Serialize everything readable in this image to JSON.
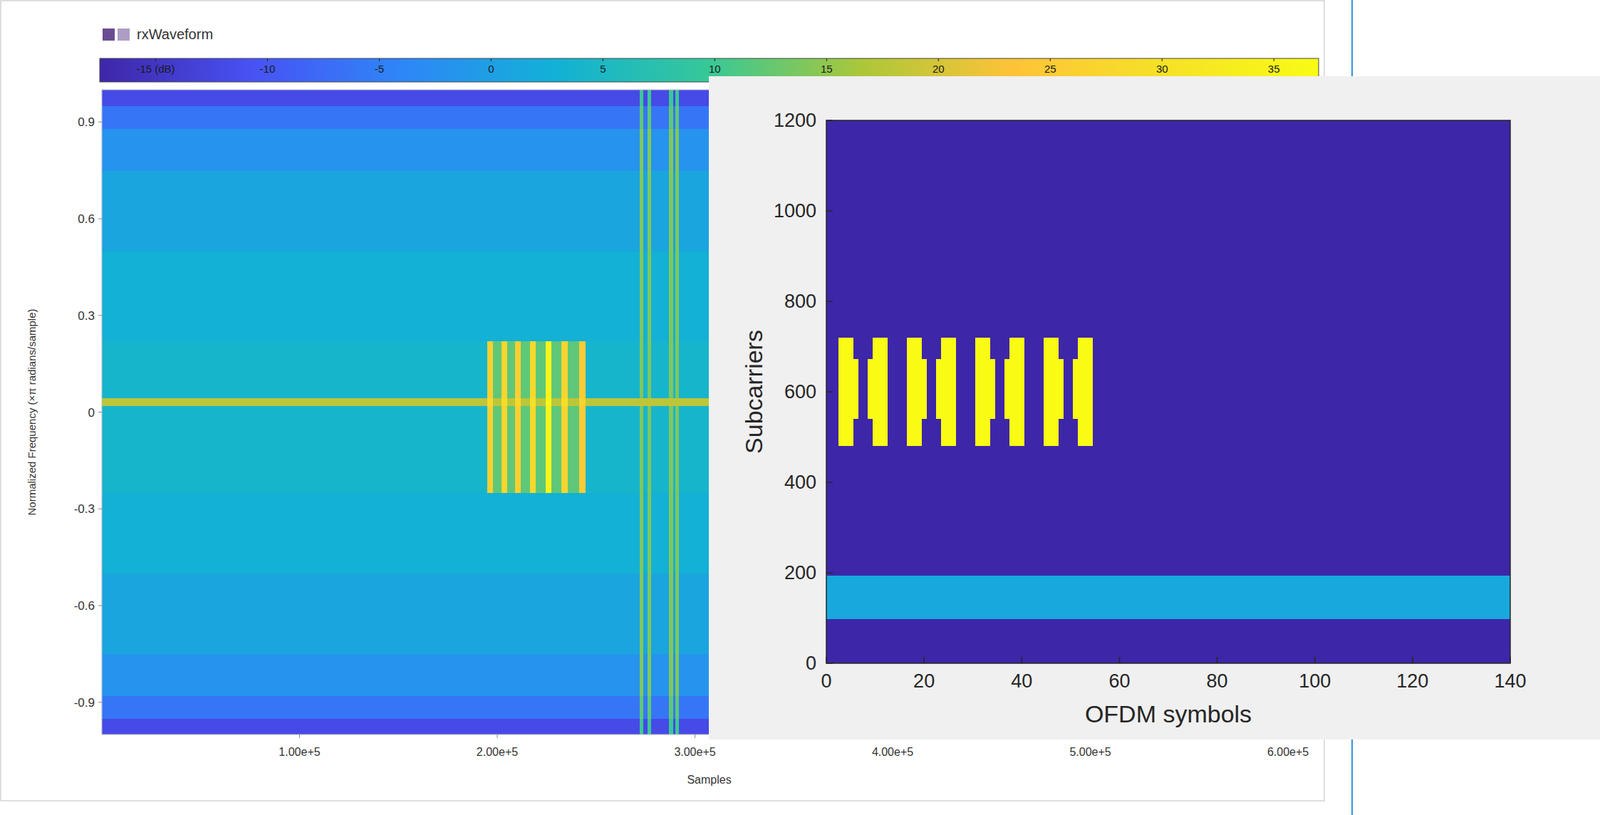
{
  "chart_data": [
    {
      "type": "heatmap",
      "series": [
        {
          "name": "rxWaveform",
          "color": "#6a4c93"
        }
      ],
      "legend": "top-left",
      "x_label": "Samples",
      "y_label": "Normalized Frequency (×π radians/sample)",
      "xlim": [
        0,
        614400
      ],
      "ylim": [
        -1,
        1
      ],
      "xticks": [
        {
          "value": 100000,
          "label": "1.00e+5"
        },
        {
          "value": 200000,
          "label": "2.00e+5"
        },
        {
          "value": 300000,
          "label": "3.00e+5"
        },
        {
          "value": 400000,
          "label": "4.00e+5"
        },
        {
          "value": 500000,
          "label": "5.00e+5"
        },
        {
          "value": 600000,
          "label": "6.00e+5"
        }
      ],
      "yticks": [
        0.9,
        0.6,
        0.3,
        0,
        -0.3,
        -0.6,
        -0.9
      ],
      "x_edges": [
        0,
        195000,
        198000,
        202000,
        205000,
        209000,
        212000,
        216500,
        219500,
        224500,
        227500,
        232500,
        235500,
        241500,
        244500,
        272000,
        274000,
        276000,
        278000,
        287000,
        289000,
        290000,
        292000,
        614400
      ],
      "y_edges": [
        -1,
        -0.95,
        -0.88,
        -0.75,
        -0.5,
        -0.25,
        0.02,
        0.045,
        0.22,
        0.5,
        0.75,
        0.88,
        0.95,
        1
      ],
      "cells": [
        [
          -12,
          -12,
          -12,
          -12,
          -12,
          -12,
          -12,
          -12,
          -12,
          -12,
          -12,
          -12,
          -12,
          -12,
          -12,
          10,
          -12,
          10,
          -12,
          10,
          -12,
          10,
          -12
        ],
        [
          -6,
          -6,
          -6,
          -6,
          -6,
          -6,
          -6,
          -6,
          -6,
          -6,
          -6,
          -6,
          -6,
          -6,
          -6,
          12,
          -6,
          12,
          -6,
          12,
          -6,
          12,
          -6
        ],
        [
          -2,
          -2,
          -2,
          -2,
          -2,
          -2,
          -2,
          -2,
          -2,
          -2,
          -2,
          -2,
          -2,
          -2,
          -2,
          14,
          -2,
          14,
          -2,
          14,
          -2,
          14,
          -2
        ],
        [
          1,
          1,
          1,
          1,
          1,
          1,
          1,
          1,
          1,
          1,
          1,
          1,
          1,
          1,
          1,
          14,
          1,
          14,
          1,
          14,
          1,
          14,
          1
        ],
        [
          3,
          3,
          3,
          3,
          3,
          3,
          3,
          3,
          3,
          3,
          3,
          3,
          3,
          3,
          3,
          14,
          3,
          14,
          3,
          14,
          3,
          14,
          3
        ],
        [
          4,
          26,
          12,
          27,
          12,
          26,
          12,
          28,
          12,
          35,
          12,
          27,
          12,
          25,
          4,
          14,
          4,
          14,
          4,
          14,
          4,
          14,
          4
        ],
        [
          18,
          28,
          18,
          29,
          18,
          28,
          18,
          30,
          18,
          36,
          18,
          29,
          18,
          27,
          18,
          18,
          18,
          18,
          18,
          18,
          18,
          18,
          18
        ],
        [
          4,
          26,
          12,
          27,
          12,
          26,
          12,
          28,
          12,
          35,
          12,
          27,
          12,
          25,
          4,
          14,
          4,
          14,
          4,
          14,
          4,
          14,
          4
        ],
        [
          3,
          3,
          3,
          3,
          3,
          3,
          3,
          3,
          3,
          3,
          3,
          3,
          3,
          3,
          3,
          14,
          3,
          14,
          3,
          14,
          3,
          14,
          3
        ],
        [
          1,
          1,
          1,
          1,
          1,
          1,
          1,
          1,
          1,
          1,
          1,
          1,
          1,
          1,
          1,
          14,
          1,
          14,
          1,
          14,
          1,
          14,
          1
        ],
        [
          -2,
          -2,
          -2,
          -2,
          -2,
          -2,
          -2,
          -2,
          -2,
          -2,
          -2,
          -2,
          -2,
          -2,
          -2,
          14,
          -2,
          14,
          -2,
          14,
          -2,
          14,
          -2
        ],
        [
          -6,
          -6,
          -6,
          -6,
          -6,
          -6,
          -6,
          -6,
          -6,
          -6,
          -6,
          -6,
          -6,
          -6,
          -6,
          12,
          -6,
          12,
          -6,
          12,
          -6,
          12,
          -6
        ],
        [
          -12,
          -12,
          -12,
          -12,
          -12,
          -12,
          -12,
          -12,
          -12,
          -12,
          -12,
          -12,
          -12,
          -12,
          -12,
          10,
          -12,
          10,
          -12,
          10,
          -12,
          10,
          -12
        ]
      ],
      "colorbar": {
        "range": [
          -17.5,
          37
        ],
        "ticks": [
          {
            "value": -15,
            "label": "-15 (dB)"
          },
          -10,
          -5,
          0,
          5,
          10,
          15,
          20,
          25,
          30,
          35
        ]
      }
    },
    {
      "type": "heatmap",
      "x_label": "OFDM symbols",
      "y_label": "Subcarriers",
      "xlim": [
        0,
        140
      ],
      "ylim": [
        0,
        1200
      ],
      "xticks": [
        0,
        20,
        40,
        60,
        80,
        100,
        120,
        140
      ],
      "yticks": [
        0,
        200,
        400,
        600,
        800,
        1000,
        1200
      ],
      "clim": [
        0,
        1
      ],
      "regions": [
        {
          "x": [
            0,
            140
          ],
          "y": [
            97,
            193
          ],
          "value": 0.35
        },
        {
          "x": [
            2.5,
            6.5
          ],
          "y": [
            540,
            672
          ],
          "value": 1
        },
        {
          "x": [
            2.5,
            5.5
          ],
          "y": [
            480,
            540
          ],
          "value": 1
        },
        {
          "x": [
            2.5,
            5.5
          ],
          "y": [
            672,
            720
          ],
          "value": 1
        },
        {
          "x": [
            8.5,
            12.5
          ],
          "y": [
            540,
            672
          ],
          "value": 1
        },
        {
          "x": [
            9.5,
            12.5
          ],
          "y": [
            480,
            540
          ],
          "value": 1
        },
        {
          "x": [
            9.5,
            12.5
          ],
          "y": [
            672,
            720
          ],
          "value": 1
        },
        {
          "x": [
            16.5,
            20.5
          ],
          "y": [
            540,
            672
          ],
          "value": 1
        },
        {
          "x": [
            16.5,
            19.5
          ],
          "y": [
            480,
            540
          ],
          "value": 1
        },
        {
          "x": [
            16.5,
            19.5
          ],
          "y": [
            672,
            720
          ],
          "value": 1
        },
        {
          "x": [
            22.5,
            26.5
          ],
          "y": [
            540,
            672
          ],
          "value": 1
        },
        {
          "x": [
            23.5,
            26.5
          ],
          "y": [
            480,
            540
          ],
          "value": 1
        },
        {
          "x": [
            23.5,
            26.5
          ],
          "y": [
            672,
            720
          ],
          "value": 1
        },
        {
          "x": [
            30.5,
            34.5
          ],
          "y": [
            540,
            672
          ],
          "value": 1
        },
        {
          "x": [
            30.5,
            33.5
          ],
          "y": [
            480,
            540
          ],
          "value": 1
        },
        {
          "x": [
            30.5,
            33.5
          ],
          "y": [
            672,
            720
          ],
          "value": 1
        },
        {
          "x": [
            36.5,
            40.5
          ],
          "y": [
            540,
            672
          ],
          "value": 1
        },
        {
          "x": [
            37.5,
            40.5
          ],
          "y": [
            480,
            540
          ],
          "value": 1
        },
        {
          "x": [
            37.5,
            40.5
          ],
          "y": [
            672,
            720
          ],
          "value": 1
        },
        {
          "x": [
            44.5,
            48.5
          ],
          "y": [
            540,
            672
          ],
          "value": 1
        },
        {
          "x": [
            44.5,
            47.5
          ],
          "y": [
            480,
            540
          ],
          "value": 1
        },
        {
          "x": [
            44.5,
            47.5
          ],
          "y": [
            672,
            720
          ],
          "value": 1
        },
        {
          "x": [
            50.5,
            54.5
          ],
          "y": [
            540,
            672
          ],
          "value": 1
        },
        {
          "x": [
            51.5,
            54.5
          ],
          "y": [
            480,
            540
          ],
          "value": 1
        },
        {
          "x": [
            51.5,
            54.5
          ],
          "y": [
            672,
            720
          ],
          "value": 1
        }
      ]
    }
  ]
}
